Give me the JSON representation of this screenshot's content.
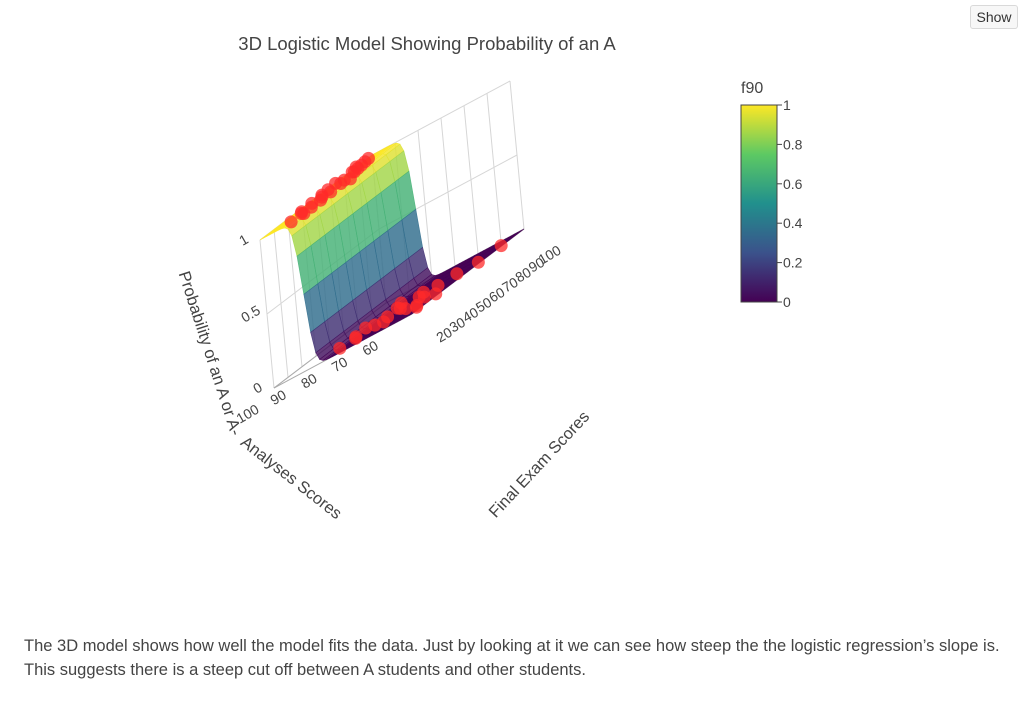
{
  "ui": {
    "show_label": "Show"
  },
  "caption": {
    "line1": "The 3D model shows how well the model fits the data. Just by looking at it we can see how steep the the logistic regression’s slope is.",
    "line2": "This suggests there is a steep cut off between A students and other students."
  },
  "chart_data": {
    "type": "surface3d",
    "title": "3D Logistic Model Showing Probability of an A",
    "zlabel": "Probability of an A or A-",
    "xlabel": "Analyses Scores",
    "ylabel": "Final Exam Scores",
    "x_ticks": [
      "100",
      "90",
      "80",
      "70",
      "60"
    ],
    "y_ticks": [
      "20",
      "30",
      "40",
      "50",
      "60",
      "70",
      "80",
      "90",
      "100"
    ],
    "z_ticks": [
      "0",
      "0.5",
      "1"
    ],
    "xlim": [
      55,
      100
    ],
    "ylim": [
      15,
      100
    ],
    "zlim": [
      0,
      1
    ],
    "colorscale": {
      "name": "viridis",
      "title": "f90",
      "ticks": [
        "1",
        "0.8",
        "0.6",
        "0.4",
        "0.2",
        "0"
      ],
      "colors": [
        "#440154",
        "#3b528b",
        "#21908d",
        "#5dc963",
        "#fde725"
      ]
    },
    "surface": {
      "cutoff_analyses": 88,
      "steepness": 1.2
    },
    "marker_color": "#ff2a2a",
    "series": [
      {
        "points": [
          {
            "x": 99,
            "y": 95,
            "z": 1
          },
          {
            "x": 98,
            "y": 90,
            "z": 1
          },
          {
            "x": 97,
            "y": 85,
            "z": 1
          },
          {
            "x": 96,
            "y": 80,
            "z": 1
          },
          {
            "x": 95,
            "y": 75,
            "z": 1
          },
          {
            "x": 99,
            "y": 70,
            "z": 1
          },
          {
            "x": 94,
            "y": 65,
            "z": 1
          },
          {
            "x": 93,
            "y": 60,
            "z": 1
          },
          {
            "x": 97,
            "y": 55,
            "z": 1
          },
          {
            "x": 92,
            "y": 50,
            "z": 1
          },
          {
            "x": 96,
            "y": 45,
            "z": 1
          },
          {
            "x": 91,
            "y": 40,
            "z": 1
          },
          {
            "x": 95,
            "y": 35,
            "z": 1
          },
          {
            "x": 93,
            "y": 30,
            "z": 1
          },
          {
            "x": 90,
            "y": 25,
            "z": 1
          },
          {
            "x": 92,
            "y": 20,
            "z": 1
          },
          {
            "x": 100,
            "y": 88,
            "z": 1
          },
          {
            "x": 98,
            "y": 62,
            "z": 1
          },
          {
            "x": 94,
            "y": 48,
            "z": 1
          },
          {
            "x": 91,
            "y": 33,
            "z": 1
          },
          {
            "x": 89,
            "y": 58,
            "z": 1
          },
          {
            "x": 97,
            "y": 78,
            "z": 1
          },
          {
            "x": 85,
            "y": 30,
            "z": 0
          },
          {
            "x": 84,
            "y": 40,
            "z": 0
          },
          {
            "x": 82,
            "y": 35,
            "z": 0
          },
          {
            "x": 80,
            "y": 45,
            "z": 0
          },
          {
            "x": 78,
            "y": 50,
            "z": 0
          },
          {
            "x": 76,
            "y": 55,
            "z": 0
          },
          {
            "x": 75,
            "y": 40,
            "z": 0
          },
          {
            "x": 72,
            "y": 60,
            "z": 0
          },
          {
            "x": 70,
            "y": 45,
            "z": 0
          },
          {
            "x": 68,
            "y": 65,
            "z": 0
          },
          {
            "x": 66,
            "y": 50,
            "z": 0
          },
          {
            "x": 64,
            "y": 70,
            "z": 0
          },
          {
            "x": 62,
            "y": 35,
            "z": 0
          },
          {
            "x": 60,
            "y": 30,
            "z": 0
          },
          {
            "x": 58,
            "y": 40,
            "z": 0
          },
          {
            "x": 57,
            "y": 70,
            "z": 0
          },
          {
            "x": 56,
            "y": 85,
            "z": 0
          },
          {
            "x": 74,
            "y": 68,
            "z": 0
          },
          {
            "x": 80,
            "y": 62,
            "z": 0
          },
          {
            "x": 86,
            "y": 52,
            "z": 0
          },
          {
            "x": 83,
            "y": 72,
            "z": 0
          }
        ]
      }
    ]
  }
}
